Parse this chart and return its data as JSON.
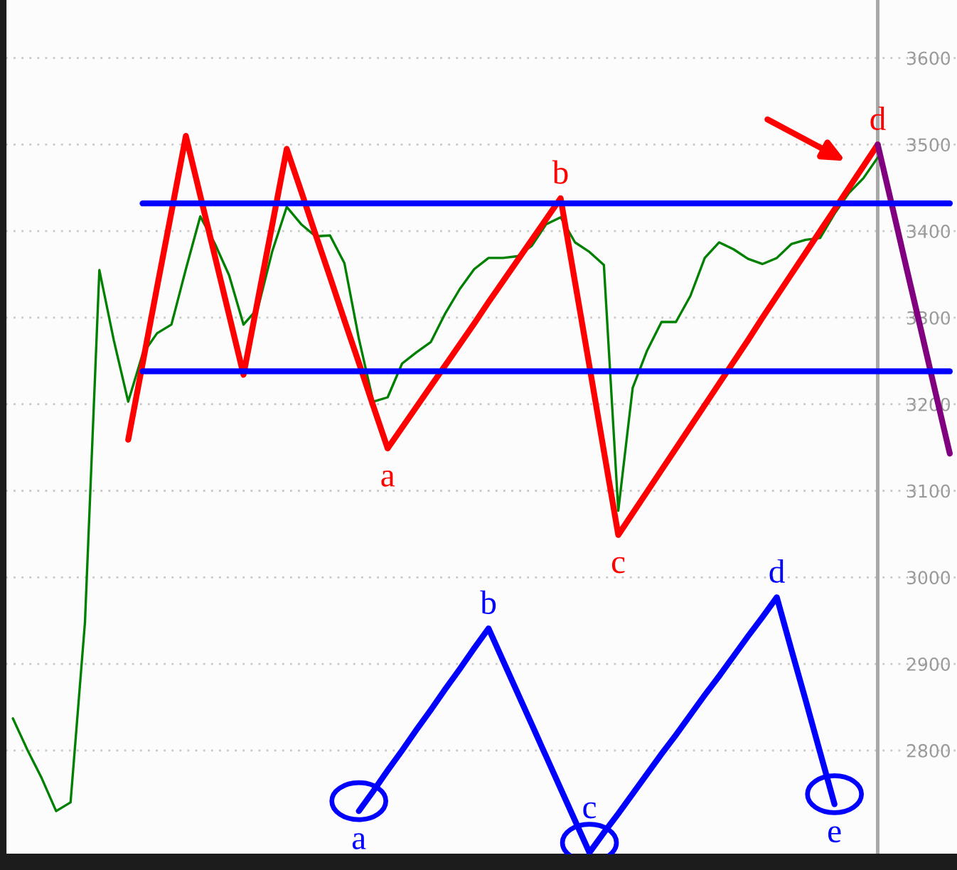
{
  "chart_data": {
    "type": "line",
    "categories": [
      null,
      null,
      null,
      null,
      null,
      null,
      null,
      null,
      null,
      null,
      null,
      null,
      null,
      null,
      null,
      null,
      null,
      null,
      null,
      null,
      null,
      null,
      null,
      null,
      null,
      null,
      null,
      null,
      null,
      null,
      null,
      null,
      null,
      null,
      null,
      null,
      null,
      null,
      null,
      null,
      null,
      null,
      null,
      null,
      null,
      null,
      null,
      null,
      null,
      null,
      null,
      null,
      null,
      null,
      null,
      null,
      null,
      null,
      null,
      null,
      null,
      null,
      null,
      null,
      null,
      null
    ],
    "ylim": [
      2680,
      3667
    ],
    "yticks": [
      2800,
      2900,
      3000,
      3100,
      3200,
      3300,
      3400,
      3500,
      3600
    ],
    "tick_labels": "y",
    "grid": "y",
    "series": [
      {
        "color": "#008000",
        "values": [
          2837,
          2801,
          2768,
          2730,
          2740,
          2948,
          3355,
          3274,
          3203,
          3258,
          3282,
          3292,
          3356,
          3417,
          3386,
          3349,
          3292,
          3311,
          3377,
          3428,
          3408,
          3394,
          3395,
          3363,
          3276,
          3203,
          3208,
          3247,
          3260,
          3272,
          3305,
          3333,
          3356,
          3369,
          3369,
          3371,
          3383,
          3408,
          3416,
          3387,
          3376,
          3361,
          3077,
          3219,
          3262,
          3295,
          3295,
          3325,
          3369,
          3387,
          3379,
          3368,
          3362,
          3369,
          3385,
          3390,
          3392,
          3420,
          3444,
          3461,
          3485,
          null,
          null,
          null,
          null,
          null
        ]
      },
      {
        "color": "#ff0000",
        "values": [
          null,
          null,
          null,
          null,
          null,
          null,
          null,
          null,
          3159,
          3247,
          3335,
          3422,
          3510,
          3441,
          3372,
          3303,
          3234,
          3321,
          3408,
          3495,
          3446,
          3396,
          3347,
          3297,
          3248,
          3198,
          3149,
          3173,
          3197,
          3221,
          3245,
          3269,
          3293,
          3318,
          3342,
          3366,
          3390,
          3414,
          3438,
          3341,
          3244,
          3146,
          3049,
          3074,
          3099,
          3124,
          3149,
          3174,
          3199,
          3224,
          3249,
          3274,
          3300,
          3325,
          3350,
          3375,
          3400,
          3425,
          3450,
          3475,
          3500,
          null,
          null,
          null,
          null,
          null
        ],
        "value_labels": [
          null,
          null,
          null,
          null,
          null,
          null,
          null,
          null,
          null,
          null,
          null,
          null,
          null,
          null,
          null,
          null,
          null,
          null,
          null,
          null,
          null,
          null,
          null,
          null,
          null,
          null,
          "a",
          null,
          null,
          null,
          null,
          null,
          null,
          null,
          null,
          null,
          null,
          null,
          "b",
          null,
          null,
          null,
          "c",
          null,
          null,
          null,
          null,
          null,
          null,
          null,
          null,
          null,
          null,
          null,
          null,
          null,
          null,
          null,
          null,
          null,
          "d",
          null,
          null,
          null,
          null,
          null
        ]
      },
      {
        "color": "#800080",
        "values": [
          null,
          null,
          null,
          null,
          null,
          null,
          null,
          null,
          null,
          null,
          null,
          null,
          null,
          null,
          null,
          null,
          null,
          null,
          null,
          null,
          null,
          null,
          null,
          null,
          null,
          null,
          null,
          null,
          null,
          null,
          null,
          null,
          null,
          null,
          null,
          null,
          null,
          null,
          null,
          null,
          null,
          null,
          null,
          null,
          null,
          null,
          null,
          null,
          null,
          null,
          null,
          null,
          null,
          null,
          null,
          null,
          null,
          null,
          null,
          null,
          3500,
          3429,
          3357,
          3286,
          3214,
          3143
        ]
      },
      {
        "color": "#0000ff",
        "values": [
          null,
          null,
          null,
          null,
          null,
          null,
          null,
          null,
          null,
          3432,
          3432,
          3432,
          3432,
          3432,
          3432,
          3432,
          3432,
          3432,
          3432,
          3432,
          3432,
          3432,
          3432,
          3432,
          3432,
          3432,
          3432,
          3432,
          3432,
          3432,
          3432,
          3432,
          3432,
          3432,
          3432,
          3432,
          3432,
          3432,
          3432,
          3432,
          3432,
          3432,
          3432,
          3432,
          3432,
          3432,
          3432,
          3432,
          3432,
          3432,
          3432,
          3432,
          3432,
          3432,
          3432,
          3432,
          3432,
          3432,
          3432,
          3432,
          3432,
          3432,
          3432,
          3432,
          3432,
          3432
        ]
      },
      {
        "color": "#0000ff",
        "values": [
          null,
          null,
          null,
          null,
          null,
          null,
          null,
          null,
          null,
          3238,
          3238,
          3238,
          3238,
          3238,
          3238,
          3238,
          3238,
          3238,
          3238,
          3238,
          3238,
          3238,
          3238,
          3238,
          3238,
          3238,
          3238,
          3238,
          3238,
          3238,
          3238,
          3238,
          3238,
          3238,
          3238,
          3238,
          3238,
          3238,
          3238,
          3238,
          3238,
          3238,
          3238,
          3238,
          3238,
          3238,
          3238,
          3238,
          3238,
          3238,
          3238,
          3238,
          3238,
          3238,
          3238,
          3238,
          3238,
          3238,
          3238,
          3238,
          3238,
          3238,
          3238,
          3238,
          3238,
          3238
        ]
      },
      {
        "color": "#0000ff",
        "values": [
          null,
          null,
          null,
          null,
          null,
          null,
          null,
          null,
          null,
          null,
          null,
          null,
          null,
          null,
          null,
          null,
          null,
          null,
          null,
          null,
          null,
          null,
          null,
          null,
          2730,
          2753,
          2777,
          2800,
          2824,
          2847,
          2871,
          2894,
          2918,
          2941,
          2904,
          2867,
          2830,
          2793,
          2756,
          2719,
          2682,
          2705,
          2727,
          2750,
          2773,
          2796,
          2818,
          2841,
          2864,
          2886,
          2909,
          2932,
          2954,
          2977,
          2917,
          2858,
          2798,
          2738,
          null,
          null,
          null,
          null,
          null,
          null,
          null,
          null
        ],
        "value_labels": [
          null,
          null,
          null,
          null,
          null,
          null,
          null,
          null,
          null,
          null,
          null,
          null,
          null,
          null,
          null,
          null,
          null,
          null,
          null,
          null,
          null,
          null,
          null,
          null,
          "a",
          null,
          null,
          null,
          null,
          null,
          null,
          null,
          null,
          "b",
          null,
          null,
          null,
          null,
          null,
          null,
          "c",
          null,
          null,
          null,
          null,
          null,
          null,
          null,
          null,
          null,
          null,
          null,
          null,
          "d",
          null,
          null,
          null,
          "e",
          null,
          null,
          null,
          null,
          null,
          null,
          null,
          null
        ]
      }
    ]
  }
}
